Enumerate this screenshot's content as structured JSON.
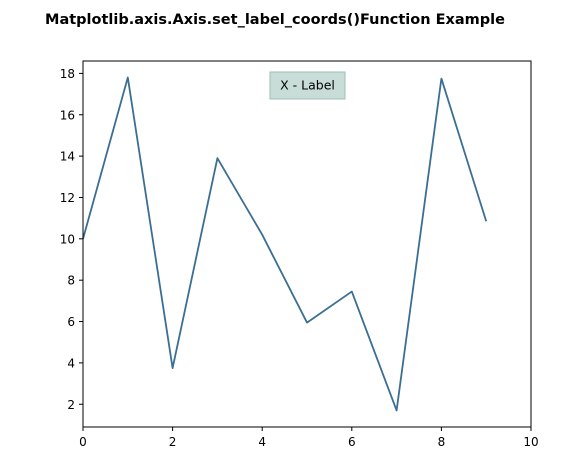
{
  "chart_data": {
    "type": "line",
    "title": "Matplotlib.axis.Axis.set_label_coords()Function Example",
    "xlabel": "X - Label",
    "ylabel": "",
    "xlim": [
      0,
      10
    ],
    "ylim": [
      0.9,
      18.6
    ],
    "xticks": [
      0,
      2,
      4,
      6,
      8,
      10
    ],
    "yticks": [
      2,
      4,
      6,
      8,
      10,
      12,
      14,
      16,
      18
    ],
    "grid": false,
    "legend": "none",
    "series": [
      {
        "color": "#3a6f93",
        "x": [
          0,
          1,
          2,
          3,
          4,
          5,
          6,
          7,
          8,
          9
        ],
        "y": [
          10.0,
          17.8,
          3.75,
          13.9,
          10.2,
          5.95,
          7.45,
          1.7,
          17.75,
          10.85
        ]
      }
    ],
    "label_box": {
      "facecolor": "#c9ddd8",
      "edgecolor": "#9ebdb4"
    }
  }
}
